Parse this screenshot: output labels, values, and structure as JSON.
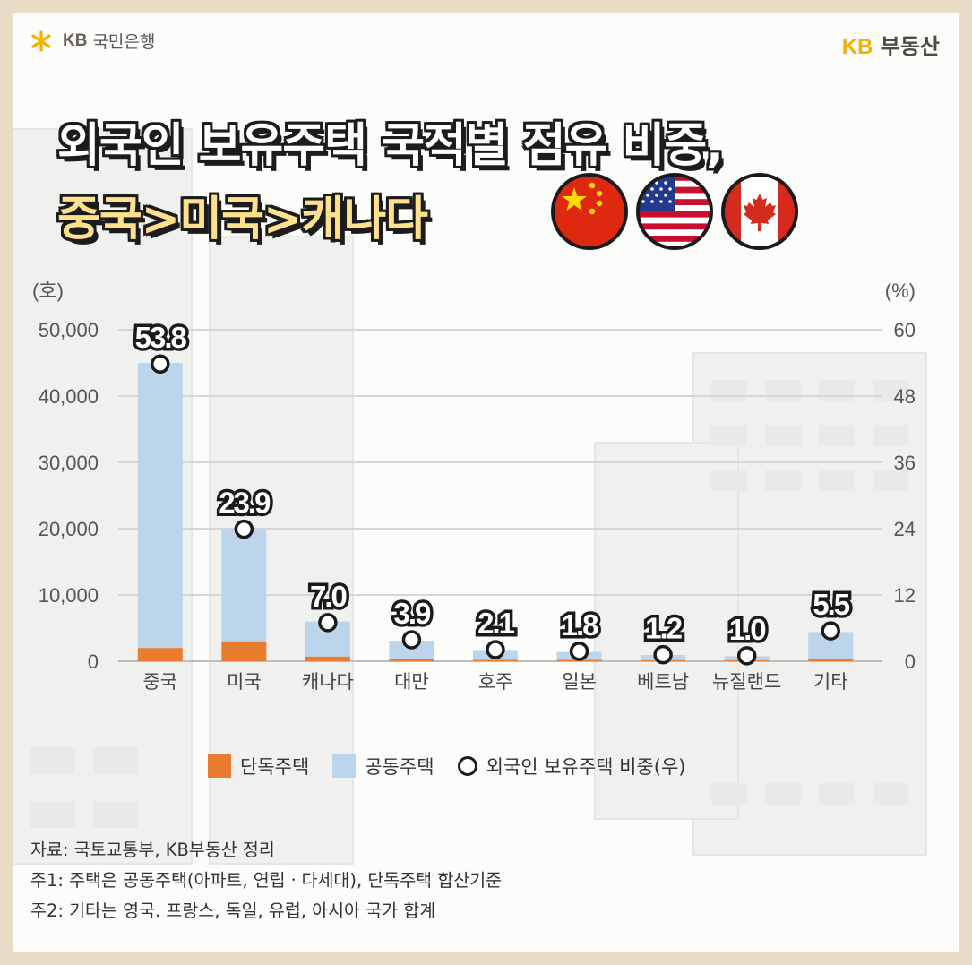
{
  "brand": {
    "left_mark": "KB",
    "left_name": "국민은행",
    "right_mark": "KB",
    "right_name": "부동산"
  },
  "headline": {
    "line1": "외국인 보유주택 국적별 점유 비중,",
    "line2": "중국>미국>캐나다"
  },
  "flags": [
    "china-flag-icon",
    "usa-flag-icon",
    "canada-flag-icon"
  ],
  "colors": {
    "detached": "#e87d2f",
    "apartment": "#bcd5ec",
    "marker_ring": "#1a1a1a",
    "background_border": "#e9dcc6",
    "headline_highlight": "#ffe08c"
  },
  "chart_data": {
    "type": "bar",
    "stacked": true,
    "left_unit": "(호)",
    "right_unit": "(%)",
    "y_left_ticks": [
      "0",
      "10,000",
      "20,000",
      "30,000",
      "40,000",
      "50,000"
    ],
    "y_right_ticks": [
      "0",
      "12",
      "24",
      "36",
      "48",
      "60"
    ],
    "ylim_left": [
      0,
      50000
    ],
    "ylim_right": [
      0,
      60
    ],
    "categories": [
      "중국",
      "미국",
      "캐나다",
      "대만",
      "호주",
      "일본",
      "베트남",
      "뉴질랜드",
      "기타"
    ],
    "series": [
      {
        "name": "단독주택",
        "axis": "left",
        "values": [
          2000,
          3000,
          700,
          400,
          200,
          200,
          150,
          150,
          400
        ]
      },
      {
        "name": "공동주택",
        "axis": "left",
        "values": [
          43000,
          17000,
          5300,
          2700,
          1500,
          1200,
          800,
          600,
          4000
        ]
      },
      {
        "name": "외국인 보유주택 비중(우)",
        "axis": "right",
        "values": [
          53.8,
          23.9,
          7.0,
          3.9,
          2.1,
          1.8,
          1.2,
          1.0,
          5.5
        ]
      }
    ],
    "data_labels": [
      "53.8",
      "23.9",
      "7.0",
      "3.9",
      "2.1",
      "1.8",
      "1.2",
      "1.0",
      "5.5"
    ],
    "grid": true,
    "legend_position": "bottom"
  },
  "notes": [
    "자료: 국토교통부, KB부동산 정리",
    "주1: 주택은 공동주택(아파트, 연립ㆍ다세대), 단독주택 합산기준",
    "주2: 기타는 영국. 프랑스, 독일, 유럽, 아시아 국가 합계"
  ]
}
